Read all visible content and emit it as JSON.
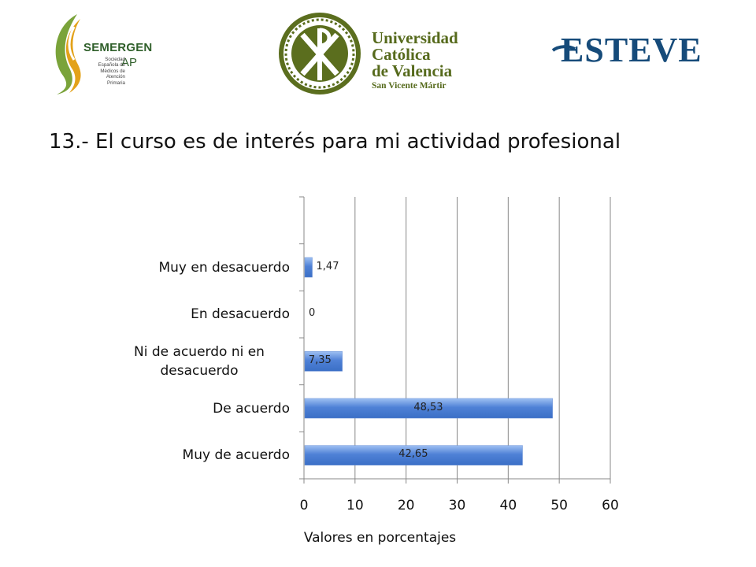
{
  "header": {
    "logos": [
      {
        "name": "SEMERGEN",
        "sub": "AP",
        "tagline": "Sociedad Española de Médicos de Atención Primaria"
      },
      {
        "name": "Universidad Católica de Valencia",
        "lines": [
          "Universidad",
          "Católica",
          "de Valencia",
          "San Vicente Mártir"
        ]
      },
      {
        "name": "ESTEVE"
      }
    ]
  },
  "colors": {
    "bar": "#4f81d6",
    "bar_light": "#9ec0f2",
    "grid": "#888888",
    "axis": "#888888"
  },
  "chart_data": {
    "type": "bar",
    "orientation": "horizontal",
    "title": "13.- El curso es de interés para mi actividad profesional",
    "categories": [
      "Muy de acuerdo",
      "De acuerdo",
      "Ni de acuerdo ni en desacuerdo",
      "En desacuerdo",
      "Muy en desacuerdo"
    ],
    "category_display": [
      [
        "Muy de acuerdo"
      ],
      [
        "De acuerdo"
      ],
      [
        "Ni de acuerdo ni en",
        "desacuerdo"
      ],
      [
        "En desacuerdo"
      ],
      [
        "Muy en desacuerdo"
      ]
    ],
    "values": [
      42.65,
      48.53,
      7.35,
      0,
      1.47
    ],
    "value_labels": [
      "42,65",
      "48,53",
      "7,35",
      "0",
      "1,47"
    ],
    "xlim": [
      0,
      60
    ],
    "xticks": [
      0,
      10,
      20,
      30,
      40,
      50,
      60
    ],
    "xlabel": "Valores en porcentajes",
    "ylabel": "",
    "grid": true,
    "legend": "none"
  }
}
